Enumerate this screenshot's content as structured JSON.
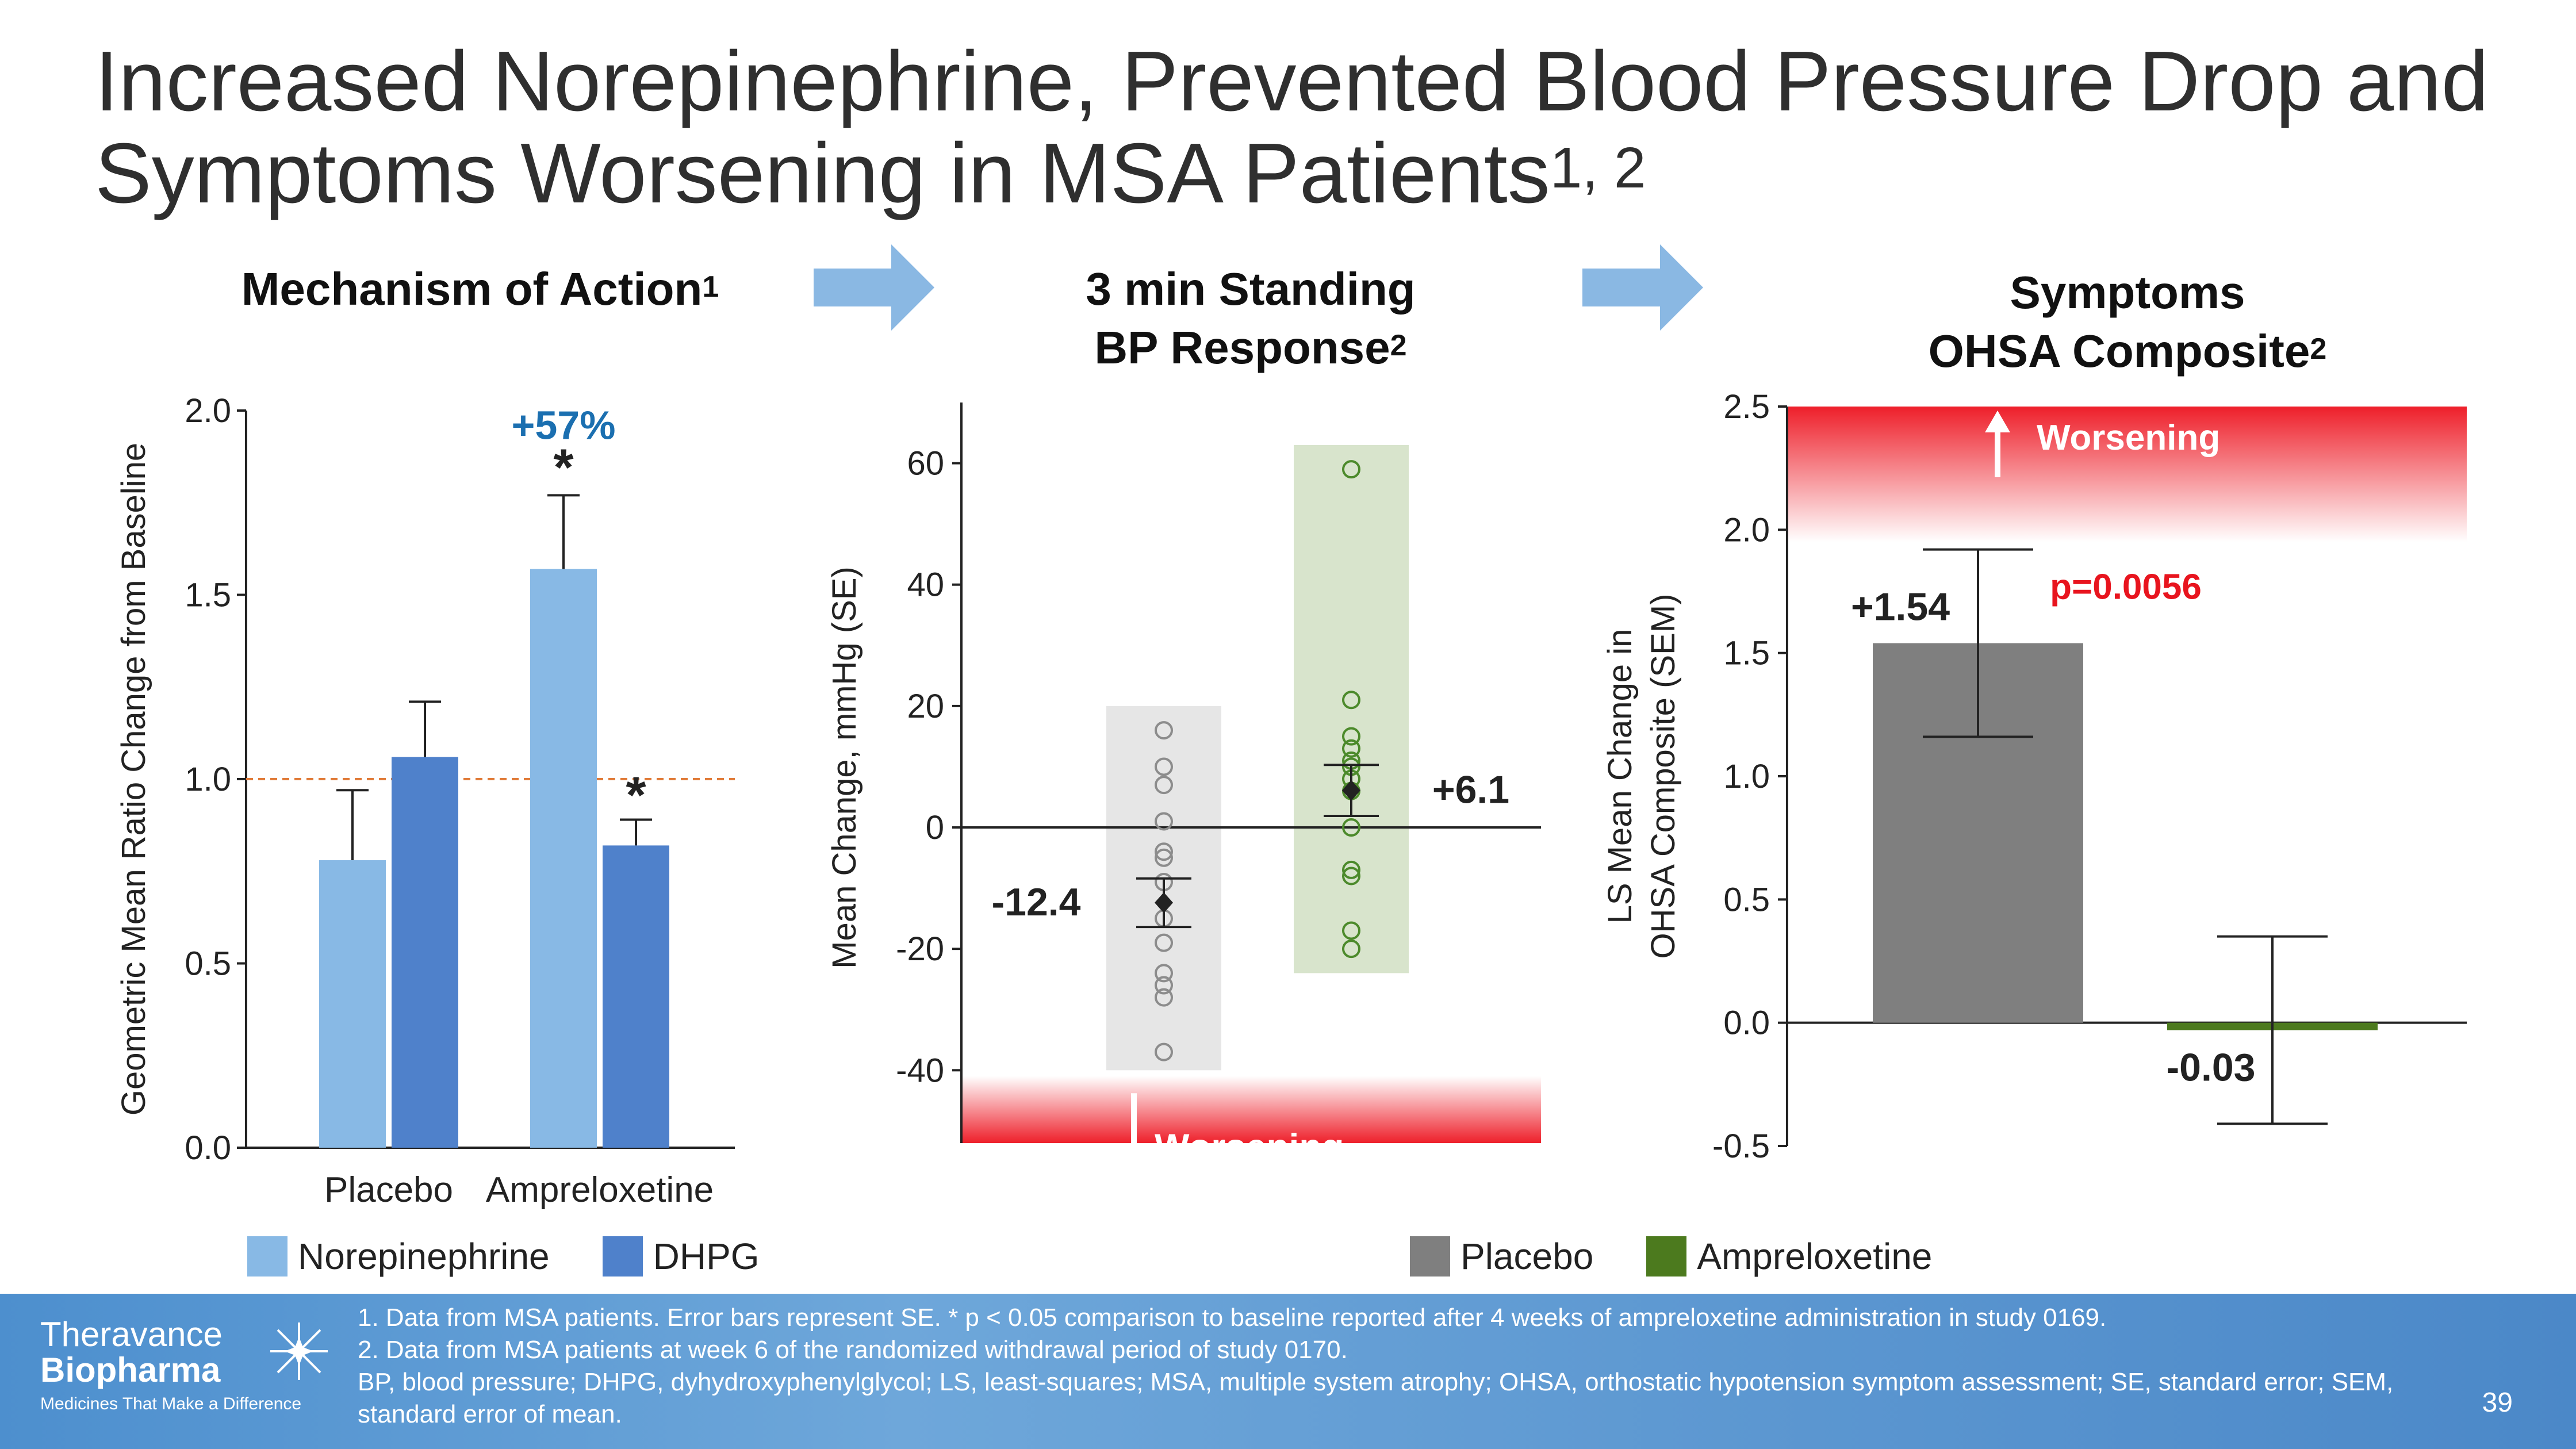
{
  "slide": {
    "title": "Increased Norepinephrine, Prevented Blood Pressure Drop and Symptoms Worsening in MSA Patients",
    "title_sup": "1, 2",
    "page_number": "39"
  },
  "panels": {
    "moa": {
      "title": "Mechanism of Action",
      "sup": "1"
    },
    "bp": {
      "title_line1": "3 min Standing",
      "title_line2": "BP Response",
      "sup": "2"
    },
    "sym": {
      "title_line1": "Symptoms",
      "title_line2": "OHSA Composite",
      "sup": "2"
    }
  },
  "legends": {
    "moa": [
      {
        "label": "Norepinephrine",
        "color": "#88b9e5"
      },
      {
        "label": "DHPG",
        "color": "#4f81cb"
      }
    ],
    "bp_sym": [
      {
        "label": "Placebo",
        "color": "#7f7f7f"
      },
      {
        "label": "Ampreloxetine",
        "color": "#4c7a1e"
      }
    ]
  },
  "chart_data": [
    {
      "type": "bar",
      "title": "Mechanism of Action",
      "ylabel": "Geometric Mean Ratio Change from Baseline",
      "categories": [
        "Placebo",
        "Ampreloxetine"
      ],
      "series": [
        {
          "name": "Norepinephrine",
          "color": "#88b9e5",
          "values": [
            0.78,
            1.57
          ],
          "error": [
            0.19,
            0.2
          ]
        },
        {
          "name": "DHPG",
          "color": "#4f81cb",
          "values": [
            1.06,
            0.82
          ],
          "error": [
            0.15,
            0.07
          ]
        }
      ],
      "ylim": [
        0,
        2.0
      ],
      "yticks": [
        "0.0",
        "0.5",
        "1.0",
        "1.5",
        "2.0"
      ],
      "reference_line": 1.0,
      "annotations": [
        {
          "text": "+57%",
          "color": "#1b6fb0"
        },
        {
          "text": "*"
        },
        {
          "text": "*"
        }
      ]
    },
    {
      "type": "scatter",
      "title": "3 min Standing BP Response",
      "ylabel": "Mean Change, mmHg (SE)",
      "ylim": [
        -52,
        70
      ],
      "yticks": [
        "-40",
        "-20",
        "0",
        "20",
        "40",
        "60"
      ],
      "groups": [
        {
          "name": "Placebo",
          "mean": -12.4,
          "se": 4.0,
          "mean_label": "-12.4",
          "range": [
            -40,
            20
          ],
          "points": [
            16,
            10,
            7,
            1,
            -4,
            -5,
            -9,
            -15,
            -19,
            -24,
            -26,
            -28,
            -37
          ]
        },
        {
          "name": "Ampreloxetine",
          "mean": 6.1,
          "se": 4.2,
          "mean_label": "+6.1",
          "range": [
            -24,
            63
          ],
          "points": [
            59,
            21,
            15,
            13,
            11,
            10,
            8,
            6,
            0,
            -7,
            -8,
            -17,
            -20
          ]
        }
      ],
      "worsening_label": "Worsening"
    },
    {
      "type": "bar",
      "title": "Symptoms OHSA Composite",
      "ylabel_line1": "LS Mean Change in",
      "ylabel_line2": "OHSA Composite (SEM)",
      "categories": [
        "Placebo",
        "Ampreloxetine"
      ],
      "values": [
        1.54,
        -0.03
      ],
      "labels": [
        "+1.54",
        "-0.03"
      ],
      "error": [
        0.38,
        0.38
      ],
      "colors": [
        "#7f7f7f",
        "#4c7a1e"
      ],
      "ylim": [
        -0.5,
        2.5
      ],
      "yticks": [
        "-0.5",
        "0.0",
        "0.5",
        "1.0",
        "1.5",
        "2.0",
        "2.5"
      ],
      "p_value": "p=0.0056",
      "worsening_label": "Worsening"
    }
  ],
  "footer": {
    "logo_line1": "Theravance",
    "logo_line2": "Biopharma",
    "tagline": "Medicines That Make a Difference",
    "notes": [
      "1. Data from MSA patients. Error bars represent SE. * p < 0.05 comparison to baseline reported after 4 weeks of ampreloxetine administration in study 0169.",
      "2. Data from MSA patients at week 6 of the randomized withdrawal period of study 0170.",
      "BP, blood pressure; DHPG, dyhydroxyphenylglycol; LS, least-squares; MSA, multiple system atrophy; OHSA, orthostatic hypotension symptom assessment; SE, standard error; SEM, standard error of mean."
    ]
  }
}
